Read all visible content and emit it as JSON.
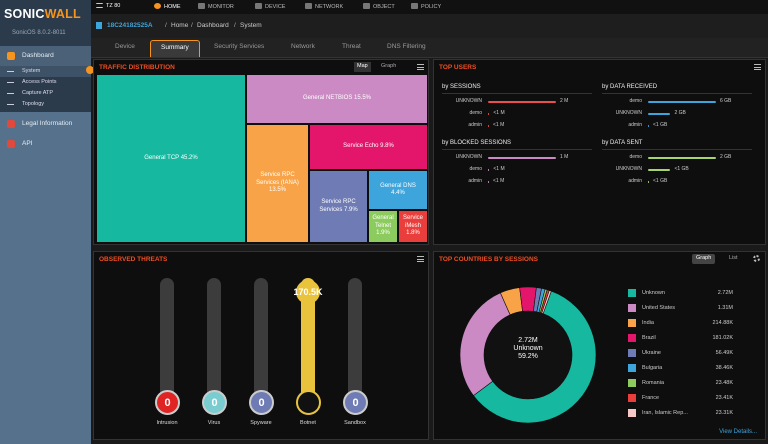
{
  "brand": {
    "logo_text_a": "SONIC",
    "logo_text_b": "WALL",
    "version": "SonicOS 8.0.2-8011"
  },
  "sidebar": {
    "dashboard": "Dashboard",
    "sub": [
      "System",
      "Access Points",
      "Capture ATP",
      "Topology"
    ],
    "legal": "Legal Information",
    "api": "API"
  },
  "topnav": {
    "device_name": "TZ 80",
    "items": [
      "HOME",
      "MONITOR",
      "DEVICE",
      "NETWORK",
      "OBJECT",
      "POLICY"
    ]
  },
  "breadcrumb": {
    "serial": "18C24182525A",
    "path": [
      "Home",
      "Dashboard",
      "System"
    ],
    "sep": "/"
  },
  "tabs": [
    "Device",
    "Summary",
    "Security Services",
    "Network",
    "Threat",
    "DNS Filtering"
  ],
  "traffic": {
    "title": "TRAFFIC DISTRIBUTION",
    "toggle_map": "Map",
    "toggle_graph": "Graph",
    "cells": [
      {
        "l1": "General TCP 45.2%",
        "l2": "",
        "color": "#16b9a0"
      },
      {
        "l1": "General NETBIOS 15.5%",
        "l2": "",
        "color": "#cb8ac3"
      },
      {
        "l1": "Service RPC",
        "l2": "Services (IANA) 13.5%",
        "color": "#f8a347"
      },
      {
        "l1": "Service Echo 9.8%",
        "l2": "",
        "color": "#e4166b"
      },
      {
        "l1": "Service RPC",
        "l2": "Services 7.9%",
        "color": "#6f7bb4"
      },
      {
        "l1": "General DNS",
        "l2": "4.4%",
        "color": "#3ea4dc"
      },
      {
        "l1": "General",
        "l2": "Telnet 1.9%",
        "color": "#8ccb5e"
      },
      {
        "l1": "Service",
        "l2": "iMesh 1.8%",
        "color": "#ea3e3c"
      }
    ]
  },
  "users": {
    "title": "TOP USERS",
    "sessions": {
      "title": "by SESSIONS",
      "rows": [
        {
          "name": "UNKNOWN",
          "value": "2 M",
          "frac": 1.0,
          "color": "#ea4e4e"
        },
        {
          "name": "demo",
          "value": "<1 M",
          "frac": 0.02,
          "color": "#ea4e4e"
        },
        {
          "name": "admin",
          "value": "<1 M",
          "frac": 0.01,
          "color": "#ea4e4e"
        }
      ]
    },
    "received": {
      "title": "by DATA RECEIVED",
      "rows": [
        {
          "name": "demo",
          "value": "6 GB",
          "frac": 1.0,
          "color": "#3ea4dc"
        },
        {
          "name": "UNKNOWN",
          "value": "2 GB",
          "frac": 0.33,
          "color": "#3ea4dc"
        },
        {
          "name": "admin",
          "value": "<1 GB",
          "frac": 0.01,
          "color": "#3ea4dc"
        }
      ]
    },
    "blocked": {
      "title": "by BLOCKED SESSIONS",
      "rows": [
        {
          "name": "UNKNOWN",
          "value": "1 M",
          "frac": 1.0,
          "color": "#cb8ac3"
        },
        {
          "name": "demo",
          "value": "<1 M",
          "frac": 0.02,
          "color": "#cb8ac3"
        },
        {
          "name": "admin",
          "value": "<1 M",
          "frac": 0.01,
          "color": "#cb8ac3"
        }
      ]
    },
    "sent": {
      "title": "by DATA SENT",
      "rows": [
        {
          "name": "demo",
          "value": "2 GB",
          "frac": 1.0,
          "color": "#a8d26b"
        },
        {
          "name": "UNKNOWN",
          "value": "<1 GB",
          "frac": 0.33,
          "color": "#a8d26b"
        },
        {
          "name": "admin",
          "value": "<1 GB",
          "frac": 0.01,
          "color": "#a8d26b"
        }
      ]
    }
  },
  "threats": {
    "title": "OBSERVED THREATS",
    "items": [
      {
        "name": "Intrusion",
        "count": "0",
        "color": "#e02424",
        "frac": 0
      },
      {
        "name": "Virus",
        "count": "0",
        "color": "#79cdd0",
        "frac": 0
      },
      {
        "name": "Spyware",
        "count": "0",
        "color": "#6f7bb4",
        "frac": 0
      },
      {
        "name": "Botnet",
        "count": "170.5K",
        "color": "#e9c33c",
        "frac": 1.0
      },
      {
        "name": "Sandbox",
        "count": "0",
        "color": "#6f7bb4",
        "frac": 0
      }
    ]
  },
  "countries": {
    "title": "TOP COUNTRIES BY SESSIONS",
    "toggle_graph": "Graph",
    "toggle_list": "List",
    "center_value": "2.72M",
    "center_label": "Unknown",
    "center_pct": "59.2%",
    "view_details": "View Details..."
  },
  "chart_data": {
    "type": "pie",
    "title": "TOP COUNTRIES BY SESSIONS",
    "categories": [
      "Unknown",
      "United States",
      "India",
      "Brazil",
      "Ukraine",
      "Bulgaria",
      "Romania",
      "France",
      "Iran, Islamic Rep..."
    ],
    "labels": [
      "2.72M",
      "1.31M",
      "214.88K",
      "181.02K",
      "56.49K",
      "38.46K",
      "23.48K",
      "23.41K",
      "23.31K"
    ],
    "values": [
      2720000,
      1310000,
      214880,
      181020,
      56490,
      38460,
      23480,
      23410,
      23310
    ],
    "colors": [
      "#16b9a0",
      "#cb8ac3",
      "#f8a347",
      "#e4166b",
      "#6f7bb4",
      "#3ea4dc",
      "#8ccb5e",
      "#ea3e3c",
      "#f7c6c6"
    ]
  }
}
